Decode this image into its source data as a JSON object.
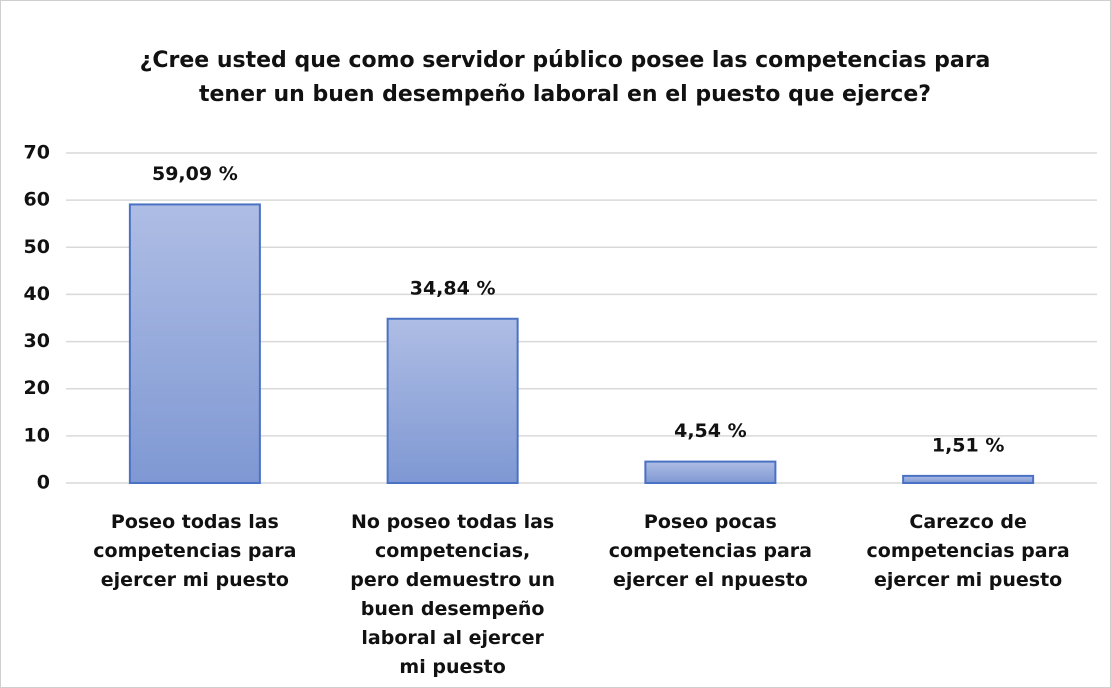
{
  "chart_data": {
    "type": "bar",
    "title": "¿Cree usted que como servidor público posee las competencias para tener un buen desempeño laboral en el puesto que ejerce?",
    "categories": [
      "Poseo todas las competencias para ejercer mi puesto",
      "No poseo todas las competencias, pero demuestro un buen desempeño laboral al ejercer mi puesto",
      "Poseo pocas competencias para ejercer el npuesto",
      "Carezco de competencias para ejercer mi puesto"
    ],
    "values": [
      59.09,
      34.84,
      4.54,
      1.51
    ],
    "value_labels": [
      "59,09 %",
      "34,84 %",
      "4,54 %",
      "1,51 %"
    ],
    "color": "#8fa5da",
    "ylim": [
      0,
      70
    ],
    "yticks": [
      0,
      10,
      20,
      30,
      40,
      50,
      60,
      70
    ],
    "grid": true
  }
}
